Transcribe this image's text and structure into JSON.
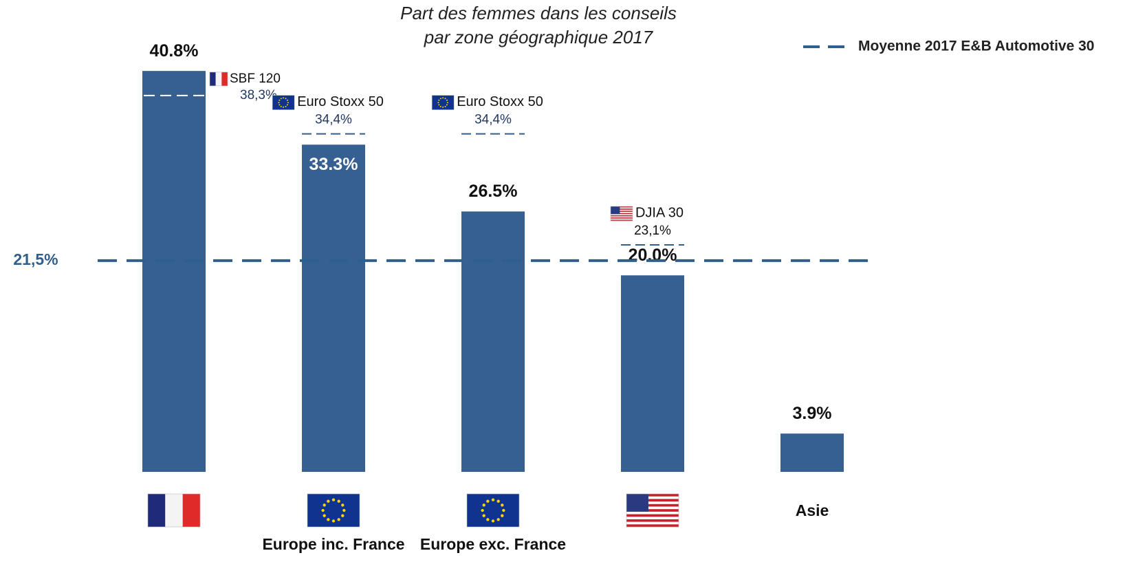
{
  "chart_data": {
    "type": "bar",
    "title": [
      "Part des femmes dans les conseils",
      "par zone géographique 2017"
    ],
    "categories": [
      null,
      "Europe inc. France",
      "Europe exc. France",
      null,
      "Asie"
    ],
    "values": [
      40.8,
      33.3,
      26.5,
      20.0,
      3.9
    ],
    "value_labels": [
      "40.8%",
      "33.3%",
      "26.5%",
      "20.0%",
      "3.9%"
    ],
    "color": "#376092",
    "ylim": [
      0,
      42
    ],
    "benchmarks": [
      {
        "name": "SBF 120",
        "value": 38.3,
        "label": "38,3%"
      },
      {
        "name": "Euro Stoxx 50",
        "value": 34.4,
        "label": "34,4%"
      },
      {
        "name": "Euro Stoxx 50",
        "value": 34.4,
        "label": "34,4%"
      },
      {
        "name": "DJIA 30",
        "value": 23.1,
        "label": "23,1%"
      },
      null
    ],
    "reference_line": {
      "name": "Moyenne 2017 E&B Automotive 30",
      "value": 21.5,
      "label": "21,5%",
      "color": "#2e5f8f"
    }
  }
}
